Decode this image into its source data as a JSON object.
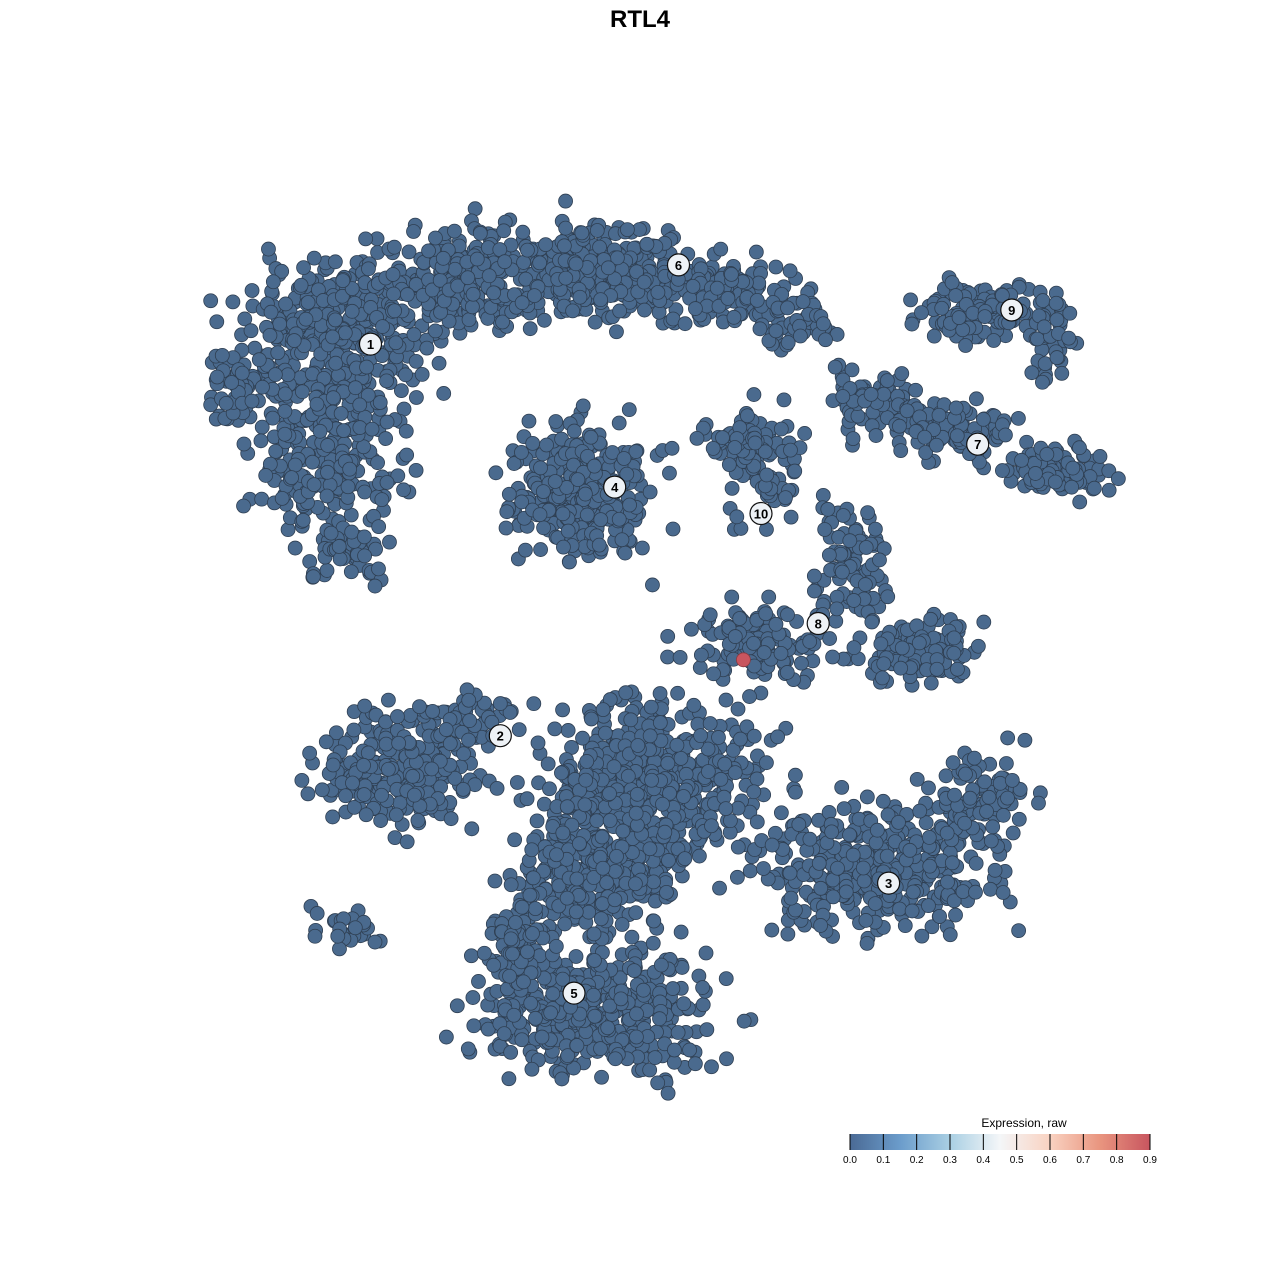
{
  "chart_data": {
    "type": "scatter",
    "title": "RTL4",
    "xlabel": "",
    "ylabel": "",
    "axes_visible": false,
    "grid": false,
    "point_color_default": "#4a6a8e",
    "point_outline": "#2f3f52",
    "highlight_color": "#c8555f",
    "clusters_note_free": true,
    "cluster_blobs": [
      {
        "cluster": "1",
        "x": -27.3,
        "y": 28.2,
        "sx": 6.4,
        "sy": 4.1,
        "n": 350
      },
      {
        "cluster": "1",
        "x": -28.2,
        "y": 17.3,
        "sx": 4.5,
        "sy": 5.5,
        "n": 250
      },
      {
        "cluster": "1",
        "x": -36.4,
        "y": 22.7,
        "sx": 2.3,
        "sy": 2.7,
        "n": 60
      },
      {
        "cluster": "1",
        "x": -26.4,
        "y": 8.2,
        "sx": 2.7,
        "sy": 1.8,
        "n": 60
      },
      {
        "cluster": "6",
        "x": -15.5,
        "y": 32.7,
        "sx": 5.5,
        "sy": 3.2,
        "n": 250
      },
      {
        "cluster": "6",
        "x": -3.6,
        "y": 33.6,
        "sx": 6.4,
        "sy": 3.2,
        "n": 300
      },
      {
        "cluster": "6",
        "x": 7.3,
        "y": 31.8,
        "sx": 4.5,
        "sy": 2.3,
        "n": 120
      },
      {
        "cluster": "6",
        "x": 14.5,
        "y": 29.1,
        "sx": 2.7,
        "sy": 1.8,
        "n": 50
      },
      {
        "cluster": "4",
        "x": -5.5,
        "y": 13.6,
        "sx": 4.1,
        "sy": 4.1,
        "n": 350
      },
      {
        "cluster": "9",
        "x": 30.9,
        "y": 30.0,
        "sx": 4.5,
        "sy": 2.3,
        "n": 120
      },
      {
        "cluster": "9",
        "x": 37.3,
        "y": 27.3,
        "sx": 1.4,
        "sy": 2.7,
        "n": 40
      },
      {
        "cluster": "7",
        "x": 21.8,
        "y": 21.8,
        "sx": 3.2,
        "sy": 2.3,
        "n": 90
      },
      {
        "cluster": "7",
        "x": 29.1,
        "y": 19.1,
        "sx": 3.6,
        "sy": 1.8,
        "n": 100
      },
      {
        "cluster": "7",
        "x": 38.2,
        "y": 15.5,
        "sx": 3.2,
        "sy": 1.8,
        "n": 90
      },
      {
        "cluster": "10",
        "x": 10.9,
        "y": 15.5,
        "sx": 2.7,
        "sy": 3.6,
        "n": 80
      },
      {
        "cluster": "10",
        "x": 9.1,
        "y": 18.2,
        "sx": 3.6,
        "sy": 0.9,
        "n": 40
      },
      {
        "cluster": "8",
        "x": 19.1,
        "y": 7.3,
        "sx": 2.3,
        "sy": 3.6,
        "n": 90
      },
      {
        "cluster": "8",
        "x": 25.5,
        "y": -0.9,
        "sx": 3.6,
        "sy": 2.3,
        "n": 120
      },
      {
        "cluster": "8",
        "x": 10.9,
        "y": 0.0,
        "sx": 4.5,
        "sy": 2.3,
        "n": 120
      },
      {
        "cluster": "2",
        "x": -21.8,
        "y": -11.8,
        "sx": 5.5,
        "sy": 3.6,
        "n": 250
      },
      {
        "cluster": "2",
        "x": -16.4,
        "y": -7.3,
        "sx": 3.6,
        "sy": 1.8,
        "n": 60
      },
      {
        "cluster": "2",
        "x": -26.4,
        "y": -26.4,
        "sx": 2.3,
        "sy": 1.4,
        "n": 30
      },
      {
        "cluster": "5",
        "x": 1.8,
        "y": -12.7,
        "sx": 7.3,
        "sy": 5.5,
        "n": 500
      },
      {
        "cluster": "5",
        "x": -3.6,
        "y": -20.9,
        "sx": 5.5,
        "sy": 4.5,
        "n": 300
      },
      {
        "cluster": "3",
        "x": 21.8,
        "y": -20.9,
        "sx": 7.3,
        "sy": 4.1,
        "n": 400
      },
      {
        "cluster": "3",
        "x": 30.9,
        "y": -14.5,
        "sx": 3.6,
        "sy": 2.7,
        "n": 100
      },
      {
        "cluster": "5",
        "x": -3.6,
        "y": -33.6,
        "sx": 7.3,
        "sy": 4.1,
        "n": 450
      },
      {
        "cluster": "5",
        "x": -10.9,
        "y": -28.2,
        "sx": 2.7,
        "sy": 3.6,
        "n": 100
      }
    ],
    "highlighted_points": [
      {
        "x": 9.4,
        "y": -1.8,
        "value": 0.9
      }
    ],
    "cluster_labels": [
      {
        "label": "1",
        "x": -24.5,
        "y": 26.9
      },
      {
        "label": "2",
        "x": -12.7,
        "y": -8.7
      },
      {
        "label": "3",
        "x": 22.6,
        "y": -22.1
      },
      {
        "label": "4",
        "x": -2.3,
        "y": 13.9
      },
      {
        "label": "5",
        "x": -6.0,
        "y": -32.1
      },
      {
        "label": "6",
        "x": 3.5,
        "y": 34.1
      },
      {
        "label": "7",
        "x": 30.7,
        "y": 17.8
      },
      {
        "label": "8",
        "x": 16.2,
        "y": 1.5
      },
      {
        "label": "9",
        "x": 33.8,
        "y": 30.0
      },
      {
        "label": "10",
        "x": 11.0,
        "y": 11.5
      }
    ],
    "legend": {
      "title": "Expression, raw",
      "placement": "bottom-right",
      "range": [
        0.0,
        0.9
      ],
      "ticks": [
        "0.0",
        "0.1",
        "0.2",
        "0.3",
        "0.4",
        "0.5",
        "0.6",
        "0.7",
        "0.8",
        "0.9"
      ],
      "colors": [
        "#4a6a95",
        "#6b9ccb",
        "#a9cfe3",
        "#f4f6f8",
        "#f9d2c1",
        "#e9957f",
        "#c8555f"
      ]
    }
  }
}
